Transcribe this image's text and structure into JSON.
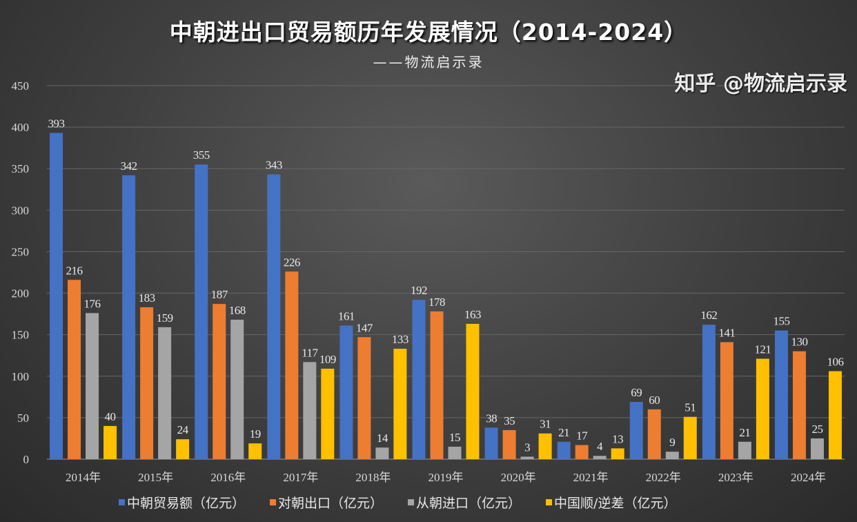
{
  "chart_data": {
    "type": "bar",
    "title": "中朝进出口贸易额历年发展情况（2014-2024）",
    "subtitle": "——物流启示录",
    "categories": [
      "2014年",
      "2015年",
      "2016年",
      "2017年",
      "2018年",
      "2019年",
      "2020年",
      "2021年",
      "2022年",
      "2023年",
      "2024年"
    ],
    "series": [
      {
        "name": "中朝贸易额（亿元）",
        "color": "#4472c4",
        "values": [
          393,
          342,
          355,
          343,
          161,
          192,
          38,
          21,
          69,
          162,
          155
        ]
      },
      {
        "name": "对朝出口（亿元）",
        "color": "#ed7d31",
        "values": [
          216,
          183,
          187,
          226,
          147,
          178,
          35,
          17,
          60,
          141,
          130
        ]
      },
      {
        "name": "从朝进口（亿元）",
        "color": "#a5a5a5",
        "values": [
          176,
          159,
          168,
          117,
          14,
          15,
          3,
          4,
          9,
          21,
          25
        ]
      },
      {
        "name": "中国顺/逆差（亿元）",
        "color": "#ffc000",
        "values": [
          40,
          24,
          19,
          109,
          133,
          163,
          31,
          13,
          51,
          121,
          106
        ]
      }
    ],
    "ylim": [
      0,
      450
    ],
    "yticks": [
      0,
      50,
      100,
      150,
      200,
      250,
      300,
      350,
      400,
      450
    ],
    "grid": true,
    "legend": "bottom",
    "xlabel": "",
    "ylabel": ""
  },
  "watermark": "知乎 @物流启示录"
}
